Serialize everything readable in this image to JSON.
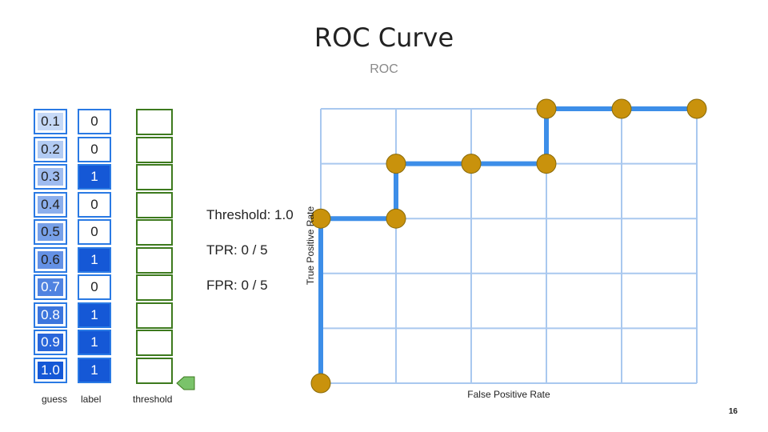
{
  "title": "ROC Curve",
  "subtitle": "ROC",
  "guess_values": [
    "0.1",
    "0.2",
    "0.3",
    "0.4",
    "0.5",
    "0.6",
    "0.7",
    "0.8",
    "0.9",
    "1.0"
  ],
  "label_values": [
    "0",
    "0",
    "1",
    "0",
    "0",
    "1",
    "0",
    "1",
    "1",
    "1"
  ],
  "captions": {
    "guess": "guess",
    "label": "label",
    "threshold": "threshold"
  },
  "info": {
    "threshold": "Threshold: 1.0",
    "tpr": "TPR: 0 / 5",
    "fpr": "FPR: 0 / 5"
  },
  "colors": {
    "guess_low": "#c6d9f7",
    "guess_high": "#1558d6",
    "label_pos": "#1558d6",
    "grid": "#a9c8ef",
    "curve": "#3d8ee8",
    "point": "#c9920c",
    "threshold_border": "#3d7a1e",
    "pointer": "#7ac36a"
  },
  "threshold_pointer_row": 10,
  "chart_data": {
    "type": "line",
    "title": "",
    "xlabel": "False Positive Rate",
    "ylabel": "True Positive Rate",
    "xlim": [
      0,
      5
    ],
    "ylim": [
      0,
      5
    ],
    "grid": true,
    "series": [
      {
        "x": [
          0,
          0,
          1,
          1,
          2,
          3,
          3,
          4,
          5
        ],
        "y": [
          0,
          3,
          3,
          4,
          4,
          4,
          5,
          5,
          5
        ]
      }
    ]
  },
  "page_number": "16"
}
